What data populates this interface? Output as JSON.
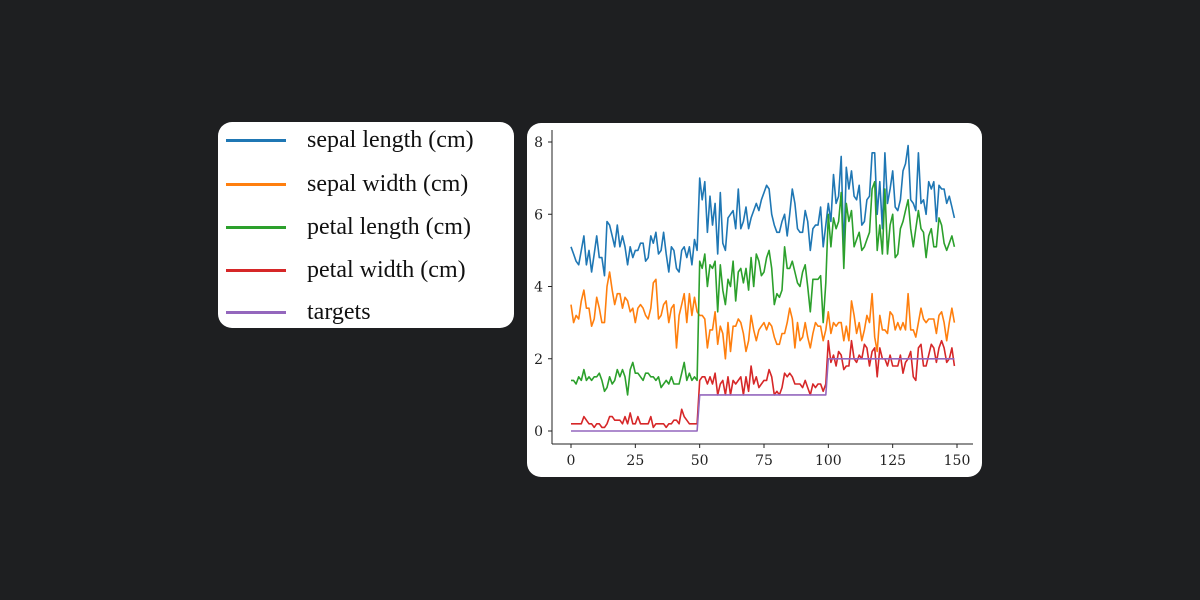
{
  "legend": [
    {
      "label": "sepal length (cm)",
      "color": "#1f77b4"
    },
    {
      "label": "sepal width (cm)",
      "color": "#ff7f0e"
    },
    {
      "label": "petal length (cm)",
      "color": "#2ca02c"
    },
    {
      "label": "petal width (cm)",
      "color": "#d62728"
    },
    {
      "label": "targets",
      "color": "#9467bd"
    }
  ],
  "chart_data": {
    "type": "line",
    "title": "",
    "xlabel": "",
    "ylabel": "",
    "xlim": [
      -7.45,
      156.45
    ],
    "ylim": [
      -0.4,
      8.3
    ],
    "xticks": [
      0,
      25,
      50,
      75,
      100,
      125,
      150
    ],
    "yticks": [
      0,
      2,
      4,
      6,
      8
    ],
    "grid": false,
    "legend_placement": "outside-left",
    "x": "index 0..149",
    "series": [
      {
        "name": "sepal length (cm)",
        "color": "#1f77b4",
        "values": [
          5.1,
          4.9,
          4.7,
          4.6,
          5.0,
          5.4,
          4.6,
          5.0,
          4.4,
          4.9,
          5.4,
          4.8,
          4.8,
          4.3,
          5.8,
          5.7,
          5.4,
          5.1,
          5.7,
          5.1,
          5.4,
          5.1,
          4.6,
          5.1,
          4.8,
          5.0,
          5.0,
          5.2,
          5.2,
          4.7,
          4.8,
          5.4,
          5.2,
          5.5,
          4.9,
          5.0,
          5.5,
          4.9,
          4.4,
          5.1,
          5.0,
          4.5,
          4.4,
          5.0,
          5.1,
          4.8,
          5.1,
          4.6,
          5.3,
          5.0,
          7.0,
          6.4,
          6.9,
          5.5,
          6.5,
          5.7,
          6.3,
          4.9,
          6.6,
          5.2,
          5.0,
          5.9,
          6.0,
          6.1,
          5.6,
          6.7,
          5.6,
          5.8,
          6.2,
          5.6,
          5.9,
          6.1,
          6.3,
          6.1,
          6.4,
          6.6,
          6.8,
          6.7,
          6.0,
          5.7,
          5.5,
          5.5,
          5.8,
          6.0,
          5.4,
          6.0,
          6.7,
          6.3,
          5.6,
          5.5,
          5.5,
          6.1,
          5.8,
          5.0,
          5.6,
          5.7,
          5.7,
          6.2,
          5.1,
          5.7,
          6.3,
          5.8,
          7.1,
          6.3,
          6.5,
          7.6,
          4.9,
          7.3,
          6.7,
          7.2,
          6.5,
          6.4,
          6.8,
          5.7,
          5.8,
          6.4,
          6.5,
          7.7,
          7.7,
          6.0,
          6.9,
          5.6,
          7.7,
          6.3,
          6.7,
          7.2,
          6.2,
          6.1,
          6.4,
          7.2,
          7.4,
          7.9,
          6.4,
          6.3,
          6.1,
          7.7,
          6.3,
          6.4,
          6.0,
          6.9,
          6.7,
          6.9,
          5.8,
          6.8,
          6.7,
          6.7,
          6.3,
          6.5,
          6.2,
          5.9
        ]
      },
      {
        "name": "sepal width (cm)",
        "color": "#ff7f0e",
        "values": [
          3.5,
          3.0,
          3.2,
          3.1,
          3.6,
          3.9,
          3.4,
          3.4,
          2.9,
          3.1,
          3.7,
          3.4,
          3.0,
          3.0,
          4.0,
          4.4,
          3.9,
          3.5,
          3.8,
          3.8,
          3.4,
          3.7,
          3.6,
          3.3,
          3.4,
          3.0,
          3.4,
          3.5,
          3.4,
          3.2,
          3.1,
          3.4,
          4.1,
          4.2,
          3.1,
          3.2,
          3.5,
          3.6,
          3.0,
          3.4,
          3.5,
          2.3,
          3.2,
          3.5,
          3.8,
          3.0,
          3.8,
          3.2,
          3.7,
          3.3,
          3.2,
          3.2,
          3.1,
          2.3,
          2.8,
          2.8,
          3.3,
          2.4,
          2.9,
          2.7,
          2.0,
          3.0,
          2.2,
          2.9,
          2.9,
          3.1,
          3.0,
          2.7,
          2.2,
          2.5,
          3.2,
          2.8,
          2.5,
          2.8,
          2.9,
          3.0,
          2.8,
          3.0,
          2.9,
          2.6,
          2.4,
          2.4,
          2.7,
          2.7,
          3.0,
          3.4,
          3.1,
          2.3,
          3.0,
          2.5,
          2.6,
          3.0,
          2.6,
          2.3,
          2.7,
          3.0,
          2.9,
          2.9,
          2.5,
          2.8,
          3.3,
          2.7,
          3.0,
          2.9,
          3.0,
          3.0,
          2.5,
          2.9,
          2.5,
          3.6,
          3.2,
          2.7,
          3.0,
          2.5,
          2.8,
          3.2,
          3.0,
          3.8,
          2.6,
          2.2,
          3.2,
          2.8,
          2.8,
          2.7,
          3.3,
          3.2,
          2.8,
          3.0,
          2.8,
          3.0,
          2.8,
          3.8,
          2.8,
          2.8,
          2.6,
          3.0,
          3.4,
          3.1,
          3.0,
          3.1,
          3.1,
          3.1,
          2.7,
          3.2,
          3.3,
          3.0,
          2.5,
          3.0,
          3.4,
          3.0
        ]
      },
      {
        "name": "petal length (cm)",
        "color": "#2ca02c",
        "values": [
          1.4,
          1.4,
          1.3,
          1.5,
          1.4,
          1.7,
          1.4,
          1.5,
          1.4,
          1.5,
          1.5,
          1.6,
          1.4,
          1.1,
          1.2,
          1.5,
          1.3,
          1.4,
          1.7,
          1.5,
          1.7,
          1.5,
          1.0,
          1.7,
          1.9,
          1.6,
          1.6,
          1.5,
          1.4,
          1.6,
          1.6,
          1.5,
          1.5,
          1.4,
          1.5,
          1.2,
          1.3,
          1.4,
          1.3,
          1.5,
          1.3,
          1.3,
          1.3,
          1.6,
          1.9,
          1.4,
          1.6,
          1.4,
          1.5,
          1.4,
          4.7,
          4.5,
          4.9,
          4.0,
          4.6,
          4.5,
          4.7,
          3.3,
          4.6,
          3.9,
          3.5,
          4.2,
          4.0,
          4.7,
          3.6,
          4.4,
          4.5,
          4.1,
          4.5,
          3.9,
          4.8,
          4.0,
          4.9,
          4.7,
          4.3,
          4.4,
          4.8,
          5.0,
          4.5,
          3.5,
          3.8,
          3.7,
          3.9,
          5.1,
          4.5,
          4.5,
          4.7,
          4.4,
          4.1,
          4.0,
          4.4,
          4.6,
          4.0,
          3.3,
          4.2,
          4.2,
          4.2,
          4.3,
          3.0,
          4.1,
          6.0,
          5.1,
          5.9,
          5.6,
          5.8,
          6.6,
          4.5,
          6.3,
          5.8,
          6.1,
          5.1,
          5.3,
          5.5,
          5.0,
          5.1,
          5.3,
          5.5,
          6.7,
          6.9,
          5.0,
          5.7,
          4.9,
          6.7,
          4.9,
          5.7,
          6.0,
          4.8,
          4.9,
          5.6,
          5.8,
          6.1,
          6.4,
          5.6,
          5.1,
          5.6,
          6.1,
          5.6,
          5.5,
          4.8,
          5.4,
          5.6,
          5.1,
          5.1,
          5.9,
          5.7,
          5.2,
          5.0,
          5.2,
          5.4,
          5.1
        ]
      },
      {
        "name": "petal width (cm)",
        "color": "#d62728",
        "values": [
          0.2,
          0.2,
          0.2,
          0.2,
          0.2,
          0.4,
          0.3,
          0.2,
          0.2,
          0.1,
          0.2,
          0.2,
          0.1,
          0.1,
          0.2,
          0.4,
          0.4,
          0.3,
          0.3,
          0.3,
          0.2,
          0.4,
          0.2,
          0.5,
          0.2,
          0.2,
          0.4,
          0.2,
          0.2,
          0.2,
          0.2,
          0.4,
          0.1,
          0.2,
          0.2,
          0.2,
          0.2,
          0.1,
          0.2,
          0.2,
          0.3,
          0.3,
          0.2,
          0.6,
          0.4,
          0.3,
          0.2,
          0.2,
          0.2,
          0.2,
          1.4,
          1.5,
          1.5,
          1.3,
          1.5,
          1.3,
          1.6,
          1.0,
          1.3,
          1.4,
          1.0,
          1.5,
          1.0,
          1.4,
          1.3,
          1.4,
          1.5,
          1.0,
          1.5,
          1.1,
          1.8,
          1.3,
          1.5,
          1.2,
          1.3,
          1.4,
          1.4,
          1.7,
          1.5,
          1.0,
          1.1,
          1.0,
          1.2,
          1.6,
          1.5,
          1.6,
          1.5,
          1.3,
          1.3,
          1.3,
          1.2,
          1.4,
          1.2,
          1.0,
          1.3,
          1.2,
          1.3,
          1.3,
          1.1,
          1.3,
          2.5,
          1.9,
          2.1,
          1.8,
          2.2,
          2.1,
          1.7,
          1.8,
          1.8,
          2.5,
          2.0,
          1.9,
          2.1,
          2.0,
          2.4,
          2.3,
          1.8,
          2.2,
          2.3,
          1.5,
          2.3,
          2.0,
          2.0,
          1.8,
          2.1,
          1.8,
          1.8,
          1.8,
          2.1,
          1.6,
          1.9,
          2.0,
          2.2,
          1.5,
          1.4,
          2.3,
          2.4,
          1.8,
          1.8,
          2.1,
          2.4,
          2.3,
          1.9,
          2.3,
          2.5,
          2.3,
          1.9,
          2.0,
          2.3,
          1.8
        ]
      },
      {
        "name": "targets",
        "color": "#9467bd",
        "values": [
          0,
          0,
          0,
          0,
          0,
          0,
          0,
          0,
          0,
          0,
          0,
          0,
          0,
          0,
          0,
          0,
          0,
          0,
          0,
          0,
          0,
          0,
          0,
          0,
          0,
          0,
          0,
          0,
          0,
          0,
          0,
          0,
          0,
          0,
          0,
          0,
          0,
          0,
          0,
          0,
          0,
          0,
          0,
          0,
          0,
          0,
          0,
          0,
          0,
          0,
          1,
          1,
          1,
          1,
          1,
          1,
          1,
          1,
          1,
          1,
          1,
          1,
          1,
          1,
          1,
          1,
          1,
          1,
          1,
          1,
          1,
          1,
          1,
          1,
          1,
          1,
          1,
          1,
          1,
          1,
          1,
          1,
          1,
          1,
          1,
          1,
          1,
          1,
          1,
          1,
          1,
          1,
          1,
          1,
          1,
          1,
          1,
          1,
          1,
          1,
          2,
          2,
          2,
          2,
          2,
          2,
          2,
          2,
          2,
          2,
          2,
          2,
          2,
          2,
          2,
          2,
          2,
          2,
          2,
          2,
          2,
          2,
          2,
          2,
          2,
          2,
          2,
          2,
          2,
          2,
          2,
          2,
          2,
          2,
          2,
          2,
          2,
          2,
          2,
          2,
          2,
          2,
          2,
          2,
          2,
          2,
          2,
          2,
          2,
          2
        ]
      }
    ]
  }
}
